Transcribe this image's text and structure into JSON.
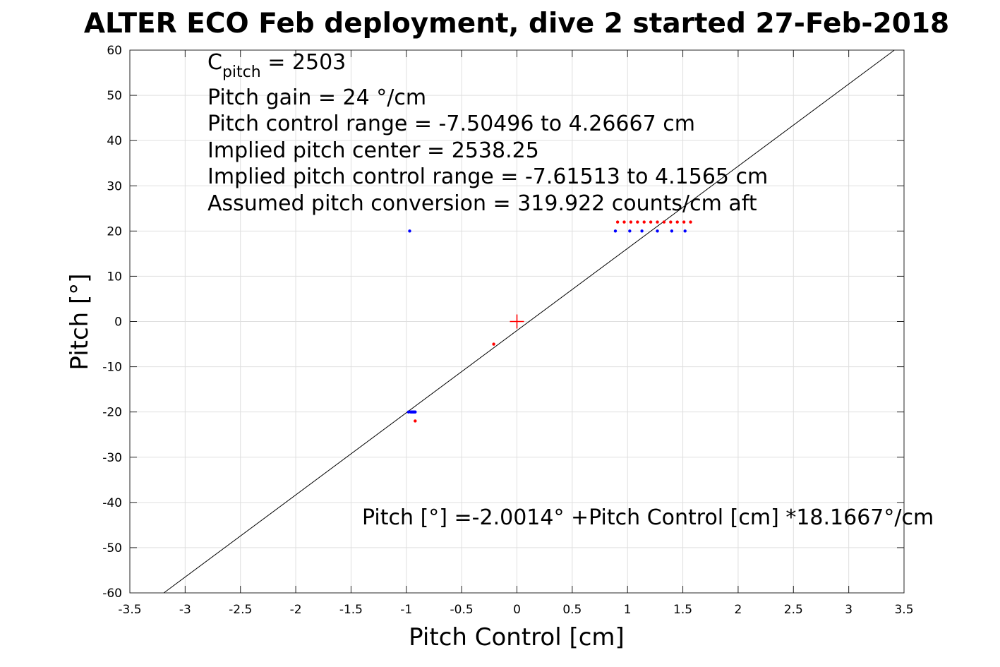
{
  "chart_data": {
    "type": "scatter",
    "title": "ALTER ECO Feb deployment, dive 2 started 27-Feb-2018",
    "xlabel": "Pitch Control [cm]",
    "ylabel": "Pitch [°]",
    "xlim": [
      -3.5,
      3.5
    ],
    "ylim": [
      -60,
      60
    ],
    "xticks": [
      -3.5,
      -3,
      -2.5,
      -2,
      -1.5,
      -1,
      -0.5,
      0,
      0.5,
      1,
      1.5,
      2,
      2.5,
      3,
      3.5
    ],
    "yticks": [
      -60,
      -50,
      -40,
      -30,
      -20,
      -10,
      0,
      10,
      20,
      30,
      40,
      50,
      60
    ],
    "grid": true,
    "annotations": {
      "c_pitch_symbol": "C",
      "c_pitch_sub": "pitch",
      "c_pitch_value": " = 2503",
      "pitch_gain": "Pitch gain = 24 °/cm",
      "pitch_control_range": "Pitch control range = -7.50496 to 4.26667 cm",
      "implied_center": "Implied pitch center = 2538.25",
      "implied_range": "Implied pitch control range = -7.61513 to 4.1565 cm",
      "conversion": "Assumed pitch conversion = 319.922 counts/cm aft",
      "fit_equation": "Pitch [°] =-2.0014° +Pitch Control [cm] *18.1667°/cm"
    },
    "fit_line": {
      "intercept": -2.0014,
      "slope": 18.1667,
      "color": "#000000"
    },
    "center_marker": {
      "x": 0,
      "y": 0,
      "color": "#ff0000"
    },
    "series": [
      {
        "color": "#0000ff",
        "points": [
          [
            -0.97,
            20
          ],
          [
            -0.98,
            -20
          ],
          [
            -0.96,
            -20
          ],
          [
            -0.95,
            -20
          ],
          [
            -0.94,
            -20
          ],
          [
            -0.93,
            -20
          ],
          [
            -0.92,
            -20
          ],
          [
            0.89,
            20
          ],
          [
            1.02,
            20
          ],
          [
            1.13,
            20
          ],
          [
            1.27,
            20
          ],
          [
            1.4,
            20
          ],
          [
            1.52,
            20
          ]
        ]
      },
      {
        "color": "#ff0000",
        "points": [
          [
            -0.21,
            -5
          ],
          [
            -0.92,
            -22
          ],
          [
            0.91,
            22
          ],
          [
            0.97,
            22
          ],
          [
            1.03,
            22
          ],
          [
            1.09,
            22
          ],
          [
            1.15,
            22
          ],
          [
            1.21,
            22
          ],
          [
            1.27,
            22
          ],
          [
            1.33,
            22
          ],
          [
            1.39,
            22
          ],
          [
            1.45,
            22
          ],
          [
            1.51,
            22
          ],
          [
            1.57,
            22
          ]
        ]
      }
    ]
  }
}
